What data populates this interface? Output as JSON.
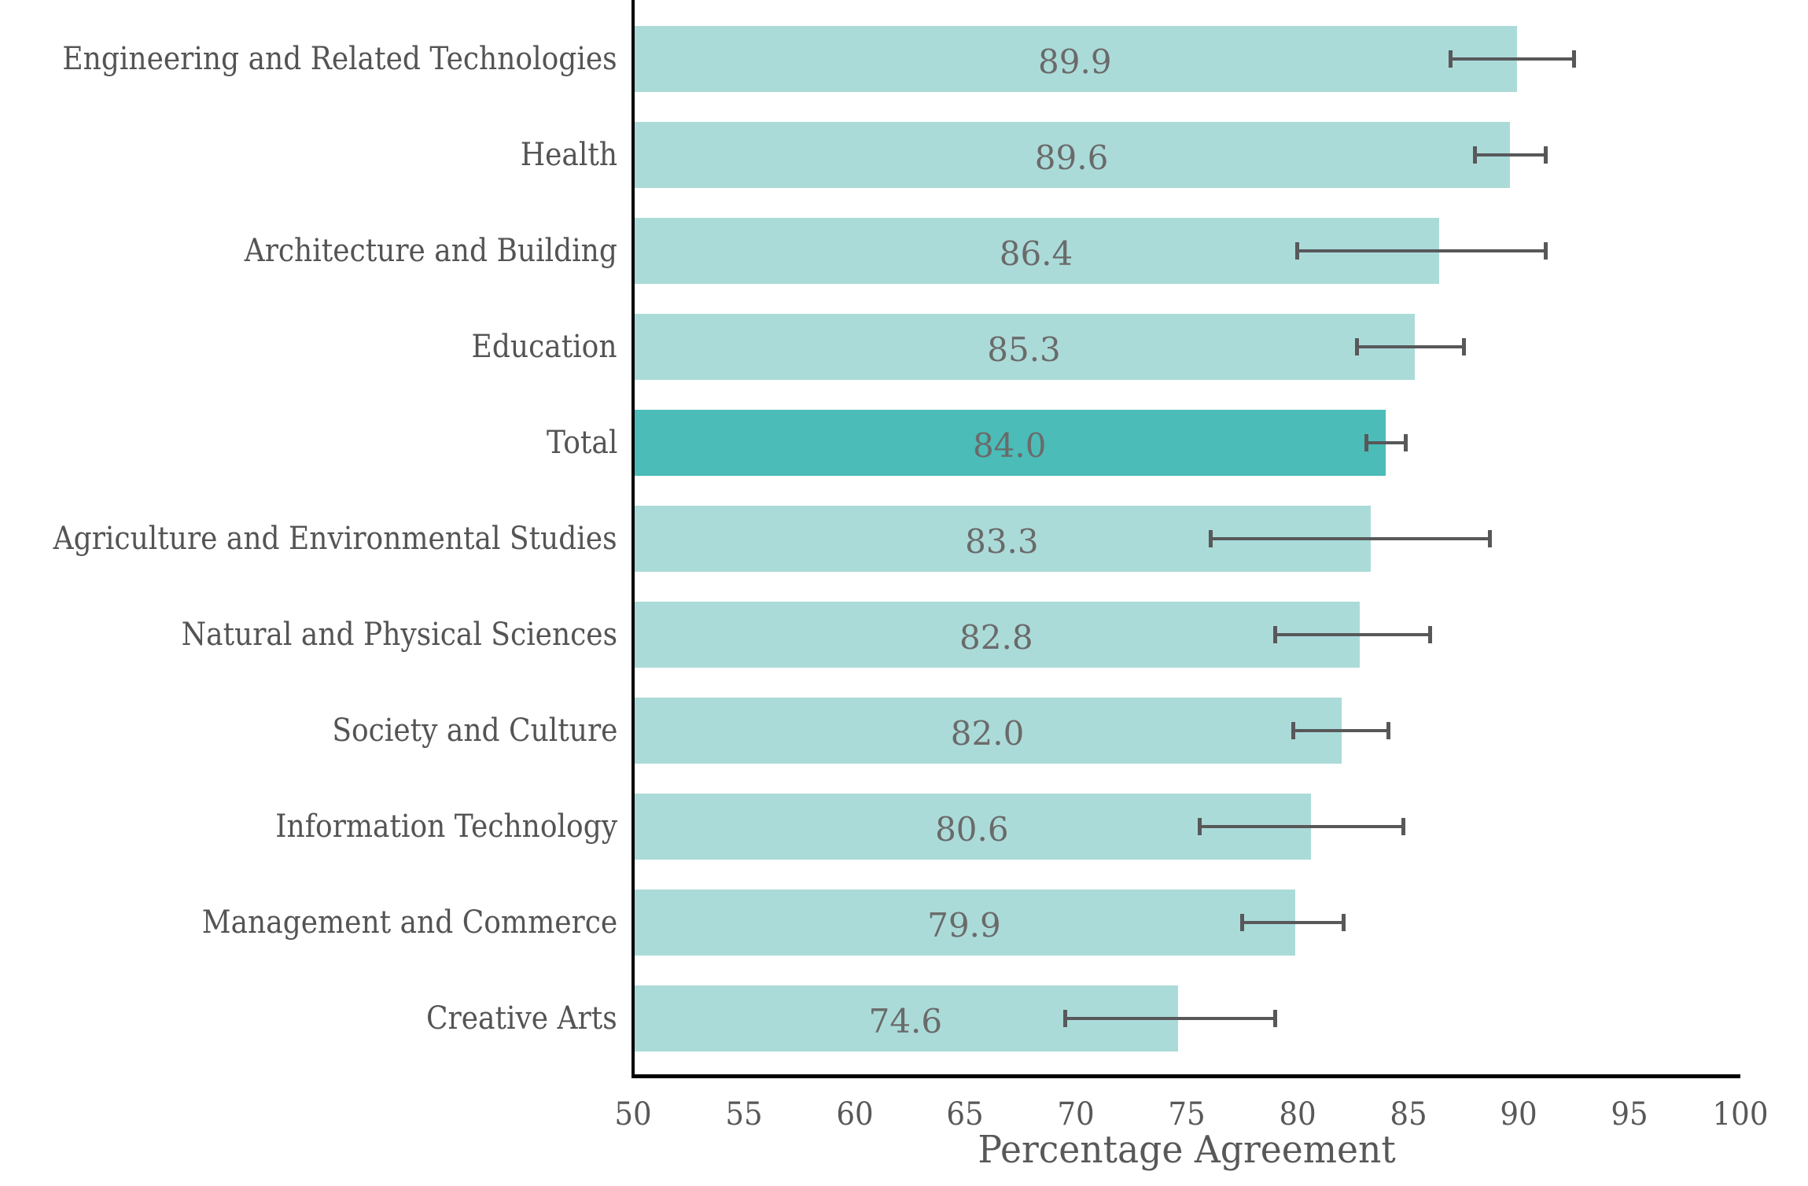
{
  "chart_data": {
    "type": "bar",
    "orientation": "horizontal",
    "title": "",
    "xlabel": "Percentage Agreement",
    "ylabel": "",
    "xlim": [
      50,
      100
    ],
    "xticks": [
      50,
      55,
      60,
      65,
      70,
      75,
      80,
      85,
      90,
      95,
      100
    ],
    "grid": false,
    "legend": null,
    "categories": [
      "Engineering and Related Technologies",
      "Health",
      "Architecture and Building",
      "Education",
      "Total",
      "Agriculture and Environmental Studies",
      "Natural and Physical Sciences",
      "Society and Culture",
      "Information Technology",
      "Management and Commerce",
      "Creative Arts"
    ],
    "values": [
      89.9,
      89.6,
      86.4,
      85.3,
      84.0,
      83.3,
      82.8,
      82.0,
      80.6,
      79.9,
      74.6
    ],
    "error_low": [
      86.9,
      88.0,
      80.0,
      82.7,
      83.1,
      76.1,
      79.0,
      79.8,
      75.6,
      77.5,
      69.5
    ],
    "error_high": [
      92.5,
      91.2,
      91.2,
      87.5,
      84.9,
      88.7,
      86.0,
      84.1,
      84.8,
      82.1,
      79.0
    ],
    "highlight_category": "Total",
    "colors": {
      "bar": "#abdbd8",
      "bar_highlight": "#4cbcb8",
      "error_bar": "#58585a",
      "value_label": "#6a6a6a",
      "category_label": "#545454",
      "tick_label": "#58585a",
      "axis_line": "#000000"
    }
  }
}
